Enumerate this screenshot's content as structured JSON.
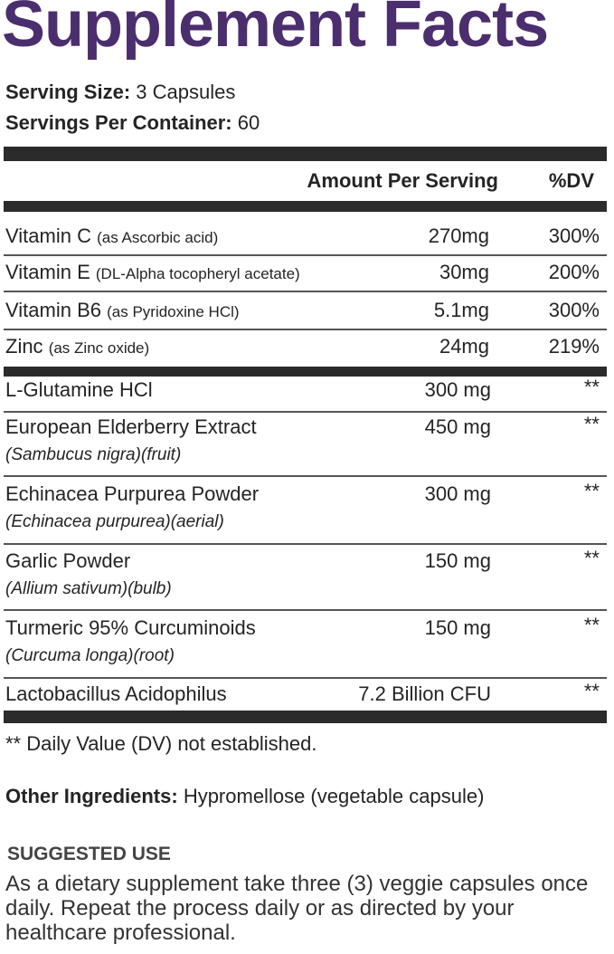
{
  "title": "Supplement Facts",
  "serving_size": {
    "label": "Serving Size:",
    "value": "3 Capsules"
  },
  "servings_per_container": {
    "label": "Servings Per Container:",
    "value": "60"
  },
  "header": {
    "amount": "Amount Per Serving",
    "dv": "%DV"
  },
  "vitamins": [
    {
      "name": "Vitamin C",
      "source": "(as Ascorbic acid)",
      "amount": "270mg",
      "dv": "300%"
    },
    {
      "name": "Vitamin E",
      "source": "(DL-Alpha tocopheryl acetate)",
      "amount": "30mg",
      "dv": "200%"
    },
    {
      "name": "Vitamin B6",
      "source": "(as Pyridoxine HCl)",
      "amount": "5.1mg",
      "dv": "300%"
    },
    {
      "name": "Zinc",
      "source": "(as Zinc oxide)",
      "amount": "24mg",
      "dv": "219%"
    }
  ],
  "ingredients": [
    {
      "name": "L-Glutamine HCl",
      "sub": "",
      "amount": "300 mg",
      "dv": "**"
    },
    {
      "name": "European Elderberry Extract",
      "sub": "(Sambucus nigra)(fruit)",
      "amount": "450 mg",
      "dv": "**"
    },
    {
      "name": "Echinacea Purpurea Powder",
      "sub": "(Echinacea purpurea)(aerial)",
      "amount": "300 mg",
      "dv": "**"
    },
    {
      "name": "Garlic Powder",
      "sub": "(Allium sativum)(bulb)",
      "amount": "150 mg",
      "dv": "**"
    },
    {
      "name": "Turmeric 95% Curcuminoids",
      "sub": "(Curcuma longa)(root)",
      "amount": "150 mg",
      "dv": "**"
    },
    {
      "name": "Lactobacillus Acidophilus",
      "sub": "",
      "amount": "7.2 Billion CFU",
      "dv": "**"
    }
  ],
  "footnote": "** Daily Value (DV) not established.",
  "other_ingredients": {
    "label": "Other Ingredients:",
    "value": "Hypromellose (vegetable capsule)"
  },
  "suggested_use": {
    "heading": "SUGGESTED USE",
    "text": "As a dietary supplement take three (3) veggie capsules once daily. Repeat the process daily or as directed by your healthcare professional."
  },
  "colors": {
    "title": "#4b2e6e",
    "bars": "#2b2b2b"
  }
}
